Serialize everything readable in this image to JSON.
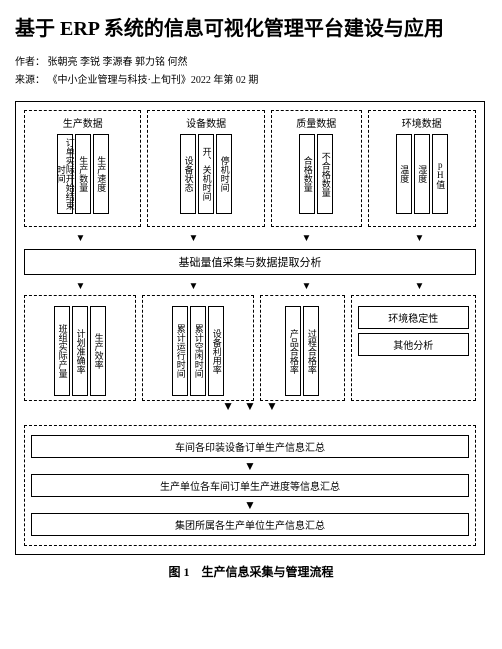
{
  "title": "基于 ERP 系统的信息可视化管理平台建设与应用",
  "authors_label": "作者：",
  "authors": "张朝亮 李锐 李源春 郭力铭 何然",
  "source_label": "来源：",
  "source": "《中小企业管理与科技·上旬刊》2022 年第 02 期",
  "caption": "图 1　生产信息采集与管理流程",
  "diagram": {
    "top_groups": [
      {
        "title": "生产数据",
        "items": [
          "订单实际开始结束时间",
          "生产数量",
          "生产速度"
        ]
      },
      {
        "title": "设备数据",
        "items": [
          "设备状态",
          "开、关机时间",
          "停机时间"
        ]
      },
      {
        "title": "质量数据",
        "items": [
          "合格数量",
          "不合格数量"
        ]
      },
      {
        "title": "环境数据",
        "items": [
          "温度",
          "湿度",
          "pH值"
        ]
      }
    ],
    "middle_bar": "基础量值采集与数据提取分析",
    "mid_groups": [
      {
        "items": [
          "班组实际产量",
          "计划准确率",
          "生产效率"
        ]
      },
      {
        "items": [
          "累计运行时间",
          "累计空闲时间",
          "设备利用率"
        ]
      },
      {
        "items": [
          "产品合格率",
          "过程合格率"
        ]
      }
    ],
    "right_boxes": [
      "环境稳定性",
      "其他分析"
    ],
    "bottom_bars": [
      "车间各印装设备订单生产信息汇总",
      "生产单位各车间订单生产进度等信息汇总",
      "集团所属各生产单位生产信息汇总"
    ],
    "colors": {
      "border": "#000000",
      "bg": "#ffffff",
      "text": "#000000"
    }
  }
}
